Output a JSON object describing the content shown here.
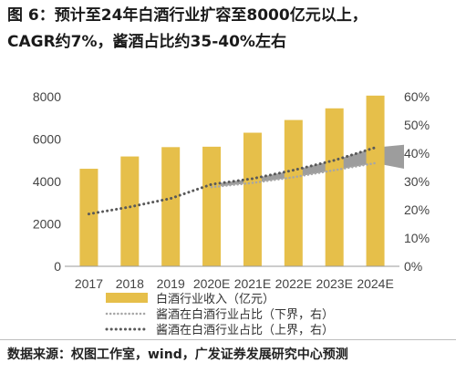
{
  "figure": {
    "title_line1": "图 6：预计至24年白酒行业扩容至8000亿元以上，",
    "title_line2": "CAGR约7%，酱酒占比约35-40%左右",
    "source": "数据来源：权图工作室，wind，广发证券发展研究中心预测"
  },
  "chart_data": {
    "type": "bar",
    "categories": [
      "2017",
      "2018",
      "2019",
      "2020E",
      "2021E",
      "2022E",
      "2023E",
      "2024E"
    ],
    "series": [
      {
        "name": "白酒行业收入（亿元）",
        "type": "bar",
        "axis": "left",
        "values": [
          4600,
          5180,
          5620,
          5640,
          6300,
          6900,
          7450,
          8050
        ],
        "color": "#e6bf4a"
      },
      {
        "name": "酱酒在白酒行业占比（下界，右）",
        "type": "line",
        "axis": "right",
        "style": "dotted",
        "values": [
          null,
          null,
          null,
          28,
          29.5,
          31.5,
          34,
          36.5
        ],
        "color": "#a6a6a6"
      },
      {
        "name": "酱酒在白酒行业占比（上界，右）",
        "type": "line",
        "axis": "right",
        "style": "dotted",
        "values": [
          18.5,
          21,
          24,
          29,
          31,
          34,
          37.5,
          42
        ],
        "color": "#595959"
      }
    ],
    "band": {
      "lower_series": 1,
      "upper_series": 2,
      "from_category": 3,
      "extend_to_pct": [
        34.5,
        43
      ],
      "color": "#8c8c8c"
    },
    "y_left": {
      "min": 0,
      "max": 8000,
      "ticks": [
        "0",
        "2000",
        "4000",
        "6000",
        "8000"
      ]
    },
    "y_right": {
      "min": 0,
      "max": 60,
      "ticks": [
        "0%",
        "10%",
        "20%",
        "30%",
        "40%",
        "50%",
        "60%"
      ]
    },
    "legend_position": "bottom-left",
    "grid": false
  }
}
